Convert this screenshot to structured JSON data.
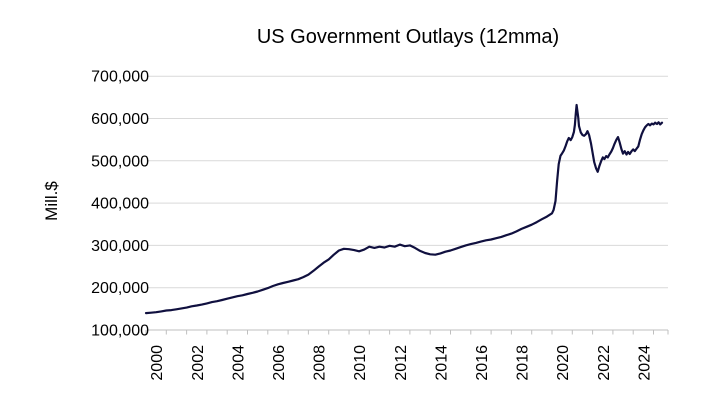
{
  "chart": {
    "title": "US Government Outlays (12mma)",
    "y_axis_title": "Mill.$",
    "colors": {
      "line": "#10103f",
      "grid": "#d9d9d9",
      "axis": "#bfbfbf",
      "text": "#000000",
      "background": "#ffffff"
    }
  },
  "chart_data": {
    "type": "line",
    "title": "US Government Outlays (12mma)",
    "xlabel": "",
    "ylabel": "Mill.$",
    "ylim": [
      100000,
      700000
    ],
    "xlim": [
      2000,
      2025.7
    ],
    "grid": "horizontal-only",
    "legend": "none",
    "y_ticks": [
      100000,
      200000,
      300000,
      400000,
      500000,
      600000,
      700000
    ],
    "y_tick_labels": [
      "100,000",
      "200,000",
      "300,000",
      "400,000",
      "500,000",
      "600,000",
      "700,000"
    ],
    "x_tick_years": [
      2000,
      2002,
      2004,
      2006,
      2008,
      2010,
      2012,
      2014,
      2016,
      2018,
      2020,
      2022,
      2024
    ],
    "x_tick_labels": [
      "2000",
      "2002",
      "2004",
      "2006",
      "2008",
      "2010",
      "2012",
      "2014",
      "2016",
      "2018",
      "2020",
      "2022",
      "2024"
    ],
    "x_minor_tick_years": [
      2000,
      2001,
      2002,
      2003,
      2004,
      2005,
      2006,
      2007,
      2008,
      2009,
      2010,
      2011,
      2012,
      2013,
      2014,
      2015,
      2016,
      2017,
      2018,
      2019,
      2020,
      2021,
      2022,
      2023,
      2024,
      2025
    ],
    "series": [
      {
        "name": "US Government Outlays (12mma)",
        "points": [
          [
            2000.0,
            140000
          ],
          [
            2000.25,
            141000
          ],
          [
            2000.5,
            142000
          ],
          [
            2000.75,
            144000
          ],
          [
            2001.0,
            146000
          ],
          [
            2001.25,
            147000
          ],
          [
            2001.5,
            149000
          ],
          [
            2001.75,
            151000
          ],
          [
            2002.0,
            153000
          ],
          [
            2002.25,
            156000
          ],
          [
            2002.5,
            158000
          ],
          [
            2002.75,
            160000
          ],
          [
            2003.0,
            163000
          ],
          [
            2003.25,
            166000
          ],
          [
            2003.5,
            168000
          ],
          [
            2003.75,
            171000
          ],
          [
            2004.0,
            174000
          ],
          [
            2004.25,
            177000
          ],
          [
            2004.5,
            180000
          ],
          [
            2004.75,
            182000
          ],
          [
            2005.0,
            185000
          ],
          [
            2005.25,
            188000
          ],
          [
            2005.5,
            191000
          ],
          [
            2005.75,
            195000
          ],
          [
            2006.0,
            199000
          ],
          [
            2006.25,
            204000
          ],
          [
            2006.5,
            208000
          ],
          [
            2006.75,
            211000
          ],
          [
            2007.0,
            214000
          ],
          [
            2007.25,
            217000
          ],
          [
            2007.5,
            220000
          ],
          [
            2007.75,
            225000
          ],
          [
            2008.0,
            231000
          ],
          [
            2008.25,
            240000
          ],
          [
            2008.5,
            250000
          ],
          [
            2008.75,
            259000
          ],
          [
            2009.0,
            267000
          ],
          [
            2009.25,
            278000
          ],
          [
            2009.5,
            288000
          ],
          [
            2009.75,
            292000
          ],
          [
            2010.0,
            291000
          ],
          [
            2010.25,
            289000
          ],
          [
            2010.5,
            286000
          ],
          [
            2010.75,
            290000
          ],
          [
            2011.0,
            297000
          ],
          [
            2011.25,
            294000
          ],
          [
            2011.5,
            297000
          ],
          [
            2011.75,
            295000
          ],
          [
            2012.0,
            299000
          ],
          [
            2012.25,
            297000
          ],
          [
            2012.5,
            302000
          ],
          [
            2012.75,
            298000
          ],
          [
            2013.0,
            300000
          ],
          [
            2013.25,
            294000
          ],
          [
            2013.5,
            287000
          ],
          [
            2013.75,
            282000
          ],
          [
            2014.0,
            279000
          ],
          [
            2014.25,
            278000
          ],
          [
            2014.5,
            281000
          ],
          [
            2014.75,
            285000
          ],
          [
            2015.0,
            288000
          ],
          [
            2015.25,
            292000
          ],
          [
            2015.5,
            296000
          ],
          [
            2015.75,
            300000
          ],
          [
            2016.0,
            303000
          ],
          [
            2016.25,
            306000
          ],
          [
            2016.5,
            309000
          ],
          [
            2016.75,
            312000
          ],
          [
            2017.0,
            314000
          ],
          [
            2017.25,
            317000
          ],
          [
            2017.5,
            320000
          ],
          [
            2017.75,
            324000
          ],
          [
            2018.0,
            328000
          ],
          [
            2018.25,
            333000
          ],
          [
            2018.5,
            339000
          ],
          [
            2018.75,
            344000
          ],
          [
            2019.0,
            349000
          ],
          [
            2019.25,
            355000
          ],
          [
            2019.5,
            362000
          ],
          [
            2019.75,
            368000
          ],
          [
            2020.0,
            376000
          ],
          [
            2020.08,
            384000
          ],
          [
            2020.17,
            405000
          ],
          [
            2020.25,
            452000
          ],
          [
            2020.33,
            492000
          ],
          [
            2020.42,
            512000
          ],
          [
            2020.5,
            518000
          ],
          [
            2020.58,
            524000
          ],
          [
            2020.67,
            535000
          ],
          [
            2020.75,
            546000
          ],
          [
            2020.83,
            554000
          ],
          [
            2020.92,
            549000
          ],
          [
            2021.0,
            556000
          ],
          [
            2021.08,
            568000
          ],
          [
            2021.13,
            585000
          ],
          [
            2021.17,
            612000
          ],
          [
            2021.21,
            632000
          ],
          [
            2021.29,
            603000
          ],
          [
            2021.33,
            582000
          ],
          [
            2021.42,
            567000
          ],
          [
            2021.5,
            561000
          ],
          [
            2021.58,
            559000
          ],
          [
            2021.67,
            563000
          ],
          [
            2021.75,
            570000
          ],
          [
            2021.83,
            561000
          ],
          [
            2021.92,
            541000
          ],
          [
            2022.0,
            519000
          ],
          [
            2022.08,
            497000
          ],
          [
            2022.17,
            482000
          ],
          [
            2022.25,
            474000
          ],
          [
            2022.33,
            487000
          ],
          [
            2022.42,
            499000
          ],
          [
            2022.5,
            508000
          ],
          [
            2022.58,
            504000
          ],
          [
            2022.67,
            511000
          ],
          [
            2022.75,
            508000
          ],
          [
            2022.83,
            515000
          ],
          [
            2022.92,
            522000
          ],
          [
            2023.0,
            530000
          ],
          [
            2023.08,
            540000
          ],
          [
            2023.17,
            550000
          ],
          [
            2023.25,
            556000
          ],
          [
            2023.33,
            544000
          ],
          [
            2023.42,
            528000
          ],
          [
            2023.5,
            517000
          ],
          [
            2023.58,
            523000
          ],
          [
            2023.67,
            515000
          ],
          [
            2023.75,
            521000
          ],
          [
            2023.83,
            516000
          ],
          [
            2023.92,
            523000
          ],
          [
            2024.0,
            527000
          ],
          [
            2024.08,
            523000
          ],
          [
            2024.17,
            529000
          ],
          [
            2024.25,
            534000
          ],
          [
            2024.33,
            549000
          ],
          [
            2024.42,
            563000
          ],
          [
            2024.5,
            572000
          ],
          [
            2024.58,
            579000
          ],
          [
            2024.67,
            584000
          ],
          [
            2024.75,
            587000
          ],
          [
            2024.83,
            584000
          ],
          [
            2024.92,
            588000
          ],
          [
            2025.0,
            586000
          ],
          [
            2025.08,
            590000
          ],
          [
            2025.17,
            587000
          ],
          [
            2025.25,
            591000
          ],
          [
            2025.33,
            586000
          ],
          [
            2025.42,
            590000
          ]
        ]
      }
    ]
  }
}
